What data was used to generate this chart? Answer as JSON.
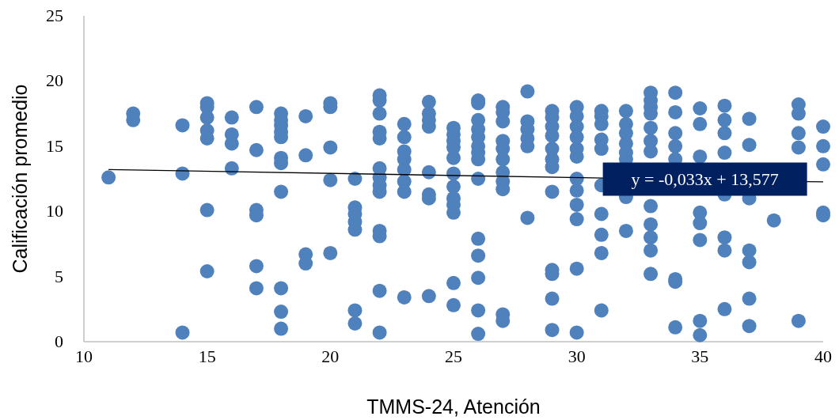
{
  "chart_data": {
    "type": "scatter",
    "xlabel": "TMMS-24, Atención",
    "ylabel": "Calificación promedio",
    "xlim": [
      10,
      40
    ],
    "ylim": [
      0,
      25
    ],
    "xticks": [
      10,
      15,
      20,
      25,
      30,
      35,
      40
    ],
    "yticks": [
      0,
      5,
      10,
      15,
      20,
      25
    ],
    "grid": false,
    "annotations": [
      {
        "text": "y = -0,033x + 13,577",
        "x": 33.5,
        "y": 12.47
      }
    ],
    "series": [
      {
        "marker": "circle",
        "color": "#4f81bd",
        "x": [
          11,
          12,
          12,
          14,
          14,
          14,
          15,
          15,
          15,
          15,
          15,
          15,
          15,
          16,
          16,
          16,
          16,
          17,
          17,
          17,
          17,
          17,
          17,
          18,
          18,
          18,
          18,
          18,
          18,
          18,
          18,
          18,
          18,
          18,
          19,
          19,
          19,
          19,
          20,
          20,
          20,
          20,
          20,
          21,
          21,
          21,
          21,
          21,
          21,
          21,
          22,
          22,
          22,
          22,
          22,
          22,
          22,
          22,
          22,
          22,
          22,
          22,
          22,
          23,
          23,
          23,
          23,
          23,
          23,
          23,
          23,
          24,
          24,
          24,
          24,
          24,
          24,
          24,
          24,
          25,
          25,
          25,
          25,
          25,
          25,
          25,
          25,
          25,
          25,
          25,
          25,
          26,
          26,
          26,
          26,
          26,
          26,
          26,
          26,
          26,
          26,
          26,
          26,
          26,
          26,
          27,
          27,
          27,
          27,
          27,
          27,
          27,
          27,
          27,
          27,
          27,
          28,
          28,
          28,
          28,
          28,
          28,
          29,
          29,
          29,
          29,
          29,
          29,
          29,
          29,
          29,
          29,
          29,
          29,
          30,
          30,
          30,
          30,
          30,
          30,
          30,
          30,
          30,
          30,
          30,
          30,
          31,
          31,
          31,
          31,
          31,
          31,
          31,
          31,
          31,
          31,
          32,
          32,
          32,
          32,
          32,
          32,
          32,
          32,
          33,
          33,
          33,
          33,
          33,
          33,
          33,
          33,
          33,
          33,
          33,
          33,
          34,
          34,
          34,
          34,
          34,
          34,
          34,
          34,
          35,
          35,
          35,
          35,
          35,
          35,
          35,
          35,
          36,
          36,
          36,
          36,
          36,
          36,
          36,
          36,
          37,
          37,
          37,
          37,
          37,
          37,
          37,
          38,
          39,
          39,
          39,
          39,
          39,
          40,
          40,
          40,
          40,
          40
        ],
        "values": [
          12.6,
          17.5,
          17.0,
          16.6,
          12.9,
          0.7,
          18.3,
          18.0,
          17.2,
          16.2,
          15.6,
          10.1,
          5.4,
          17.2,
          15.9,
          15.2,
          13.3,
          18.0,
          14.7,
          10.1,
          9.7,
          5.8,
          4.1,
          17.5,
          17.0,
          16.6,
          16.1,
          15.7,
          14.1,
          13.7,
          11.5,
          4.1,
          2.3,
          1.0,
          17.3,
          14.3,
          6.7,
          6.0,
          18.3,
          18.0,
          14.9,
          12.4,
          6.8,
          12.5,
          10.3,
          9.8,
          9.2,
          8.6,
          2.4,
          1.4,
          18.9,
          18.5,
          17.5,
          16.1,
          15.6,
          13.3,
          12.6,
          12.0,
          11.5,
          8.5,
          8.1,
          3.9,
          0.7,
          16.7,
          15.7,
          14.6,
          14.0,
          13.2,
          12.3,
          11.5,
          3.4,
          18.4,
          17.5,
          17.0,
          16.5,
          13.0,
          11.3,
          11.0,
          3.5,
          16.4,
          15.9,
          15.4,
          14.9,
          14.1,
          12.9,
          11.9,
          11.0,
          10.5,
          9.9,
          4.5,
          2.8,
          18.5,
          18.3,
          17.0,
          16.3,
          15.7,
          15.0,
          14.5,
          14.0,
          12.5,
          7.9,
          6.6,
          4.9,
          2.4,
          0.6,
          18.0,
          17.6,
          16.9,
          15.4,
          14.8,
          14.0,
          13.0,
          12.3,
          11.7,
          2.1,
          1.6,
          19.2,
          16.9,
          16.3,
          15.6,
          15.0,
          9.5,
          17.7,
          17.2,
          16.5,
          15.8,
          14.8,
          14.0,
          13.4,
          11.5,
          5.5,
          5.2,
          3.3,
          0.9,
          18.0,
          17.3,
          16.5,
          15.7,
          14.8,
          14.2,
          12.5,
          11.6,
          10.5,
          9.4,
          5.6,
          0.7,
          17.7,
          17.3,
          16.7,
          15.5,
          14.8,
          12.0,
          9.8,
          8.2,
          6.8,
          2.4,
          17.7,
          16.7,
          16.0,
          15.2,
          14.5,
          14.0,
          11.1,
          8.5,
          19.1,
          18.5,
          18.0,
          17.5,
          16.4,
          15.4,
          14.6,
          10.4,
          9.0,
          8.0,
          7.0,
          5.2,
          19.1,
          17.6,
          16.0,
          15.0,
          14.0,
          4.8,
          4.6,
          1.1,
          17.9,
          16.7,
          14.2,
          9.9,
          9.1,
          7.8,
          1.6,
          0.5,
          18.1,
          17.0,
          16.0,
          14.5,
          11.3,
          8.0,
          7.0,
          2.5,
          17.1,
          15.1,
          11.0,
          7.0,
          6.1,
          3.3,
          1.2,
          9.3,
          18.2,
          17.5,
          16.0,
          14.9,
          1.6,
          16.5,
          15.0,
          13.6,
          9.9,
          9.7
        ]
      },
      {
        "type": "line",
        "marker": "none",
        "color": "#000000",
        "x": [
          11,
          40
        ],
        "values": [
          13.21,
          12.26
        ]
      }
    ]
  }
}
